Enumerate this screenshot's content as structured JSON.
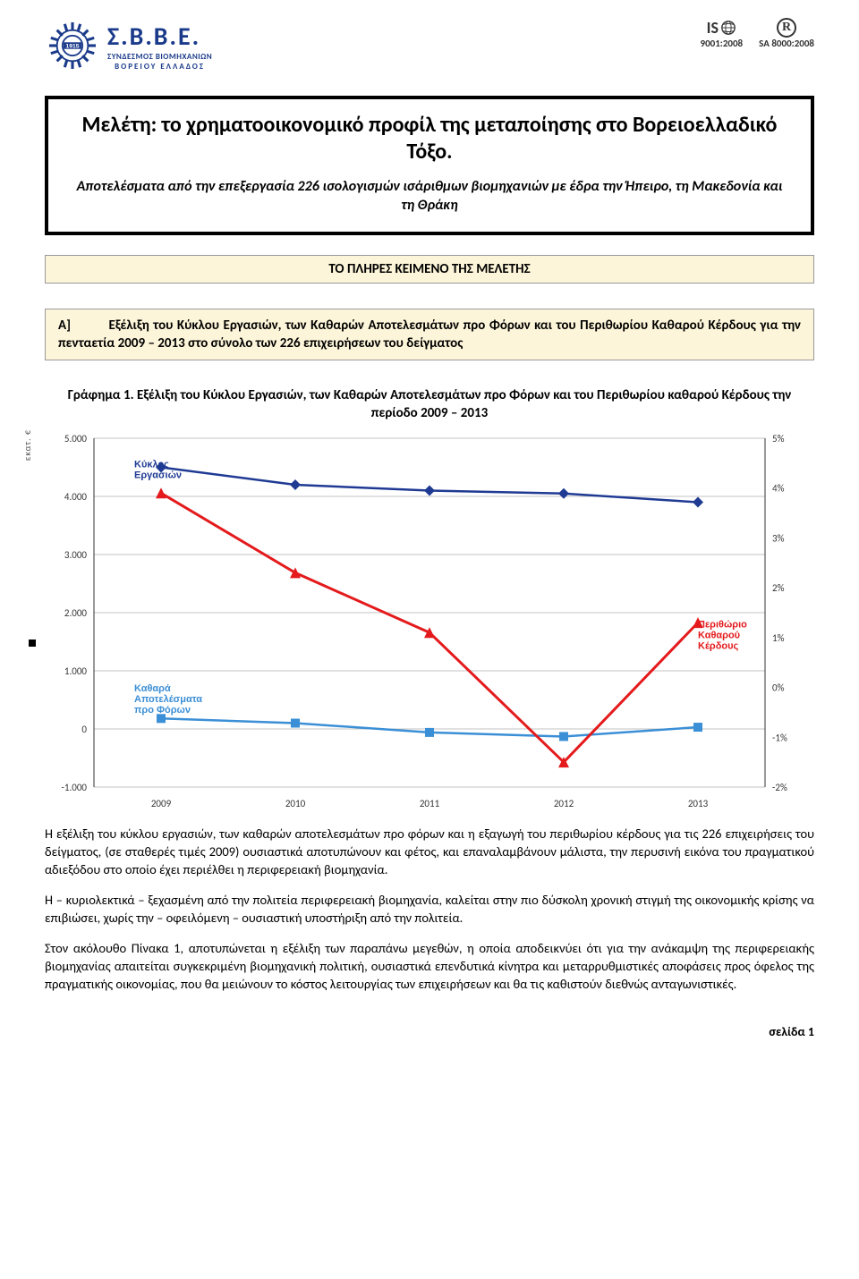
{
  "header": {
    "org_acronym": "Σ.Β.Β.Ε.",
    "org_line1": "ΣΥΝΔΕΣΜΟΣ ΒΙΟΜΗΧΑΝΙΩΝ",
    "org_line2": "ΒΟΡΕΙΟΥ ΕΛΛΑΔΟΣ",
    "gear_year": "1915",
    "gear_color": "#1a3a8a",
    "cert1_top": "IS",
    "cert1_year": "9001:2008",
    "cert2_symbol": "R",
    "cert2_year": "SA 8000:2008"
  },
  "title": {
    "main": "Μελέτη: το χρηματοοικονομικό προφίλ της μεταποίησης στο Βορειοελλαδικό Τόξο.",
    "sub": "Αποτελέσματα από την επεξεργασία 226 ισολογισμών ισάριθμων βιομηχανιών με έδρα την Ήπειρο, τη Μακεδονία και τη Θράκη"
  },
  "banner_full_text": "ΤΟ ΠΛΗΡΕΣ ΚΕΙΜΕΝΟ ΤΗΣ ΜΕΛΕΤΗΣ",
  "section_a": {
    "label": "Α]",
    "text": "Εξέλιξη του Κύκλου Εργασιών, των Καθαρών Αποτελεσμάτων προ Φόρων και του Περιθωρίου Καθαρού Κέρδους για την πενταετία 2009 – 2013 στο σύνολο των 226 επιχειρήσεων του δείγματος"
  },
  "chart": {
    "caption": "Γράφημα 1. Εξέλιξη του Κύκλου Εργασιών, των Καθαρών Αποτελεσμάτων προ Φόρων και του Περιθωρίου καθαρού Κέρδους την περίοδο 2009 – 2013",
    "type": "line",
    "y_left_unit": "εκατ. €",
    "x_categories": [
      "2009",
      "2010",
      "2011",
      "2012",
      "2013"
    ],
    "y_left": {
      "min": -1000,
      "max": 5000,
      "ticks": [
        -1000,
        0,
        1000,
        2000,
        3000,
        4000,
        5000
      ],
      "tick_labels": [
        "-1.000",
        "0",
        "1.000",
        "2.000",
        "3.000",
        "4.000",
        "5.000"
      ]
    },
    "y_right": {
      "min": -2,
      "max": 5,
      "ticks": [
        -2,
        -1,
        0,
        1,
        2,
        3,
        4,
        5
      ],
      "tick_labels": [
        "-2%",
        "-1%",
        "0%",
        "1%",
        "2%",
        "3%",
        "4%",
        "5%"
      ]
    },
    "series": [
      {
        "name": "Κύκλος Εργασιών",
        "label_lines": [
          "Κύκλος",
          "Εργασιών"
        ],
        "axis": "left",
        "color": "#1f3a93",
        "marker": "diamond",
        "line_width": 2.5,
        "values": [
          4500,
          4200,
          4100,
          4050,
          3900
        ],
        "label_pos": {
          "x": 0.06,
          "y_val": 4500
        }
      },
      {
        "name": "Καθαρά Αποτελέσματα προ Φόρων",
        "label_lines": [
          "Καθαρά",
          "Αποτελέσματα",
          "προ Φόρων"
        ],
        "axis": "left",
        "color": "#3b8fd6",
        "marker": "square",
        "line_width": 2.5,
        "values": [
          180,
          100,
          -60,
          -130,
          30
        ],
        "label_pos": {
          "x": 0.06,
          "y_val": 650
        }
      },
      {
        "name": "Περιθώριο Καθαρού Κέρδους",
        "label_lines": [
          "Περιθώριο",
          "Καθαρού",
          "Κέρδους"
        ],
        "axis": "right",
        "color": "#e41a1c",
        "marker": "triangle",
        "line_width": 3,
        "values": [
          3.9,
          2.3,
          1.1,
          -1.5,
          1.3
        ],
        "label_pos": {
          "x": 0.9,
          "y_val_right": 1.2
        }
      }
    ],
    "background_color": "#ffffff",
    "grid_color": "#888888",
    "axis_color": "#333333",
    "tick_fontsize": 11,
    "label_fontsize": 11
  },
  "paragraphs": [
    "Η εξέλιξη του κύκλου εργασιών, των καθαρών αποτελεσμάτων προ φόρων και η εξαγωγή του περιθωρίου κέρδους για τις 226 επιχειρήσεις του δείγματος, (σε σταθερές τιμές 2009) ουσιαστικά αποτυπώνουν και φέτος, και επαναλαμβάνουν μάλιστα, την περυσινή εικόνα του πραγματικού αδιεξόδου στο οποίο έχει περιέλθει η περιφερειακή βιομηχανία.",
    "Η – κυριολεκτικά – ξεχασμένη από την πολιτεία περιφερειακή βιομηχανία, καλείται στην πιο δύσκολη χρονική στιγμή της οικονομικής κρίσης να επιβιώσει, χωρίς την – οφειλόμενη – ουσιαστική υποστήριξη από την πολιτεία.",
    "Στον ακόλουθο Πίνακα 1, αποτυπώνεται η εξέλιξη των παραπάνω μεγεθών, η οποία αποδεικνύει ότι για την ανάκαμψη της περιφερειακής βιομηχανίας απαιτείται συγκεκριμένη βιομηχανική πολιτική, ουσιαστικά επενδυτικά κίνητρα και μεταρρυθμιστικές αποφάσεις προς όφελος της πραγματικής οικονομίας, που θα μειώνουν το κόστος λειτουργίας των επιχειρήσεων και θα τις καθιστούν διεθνώς ανταγωνιστικές."
  ],
  "footer": "σελίδα 1"
}
